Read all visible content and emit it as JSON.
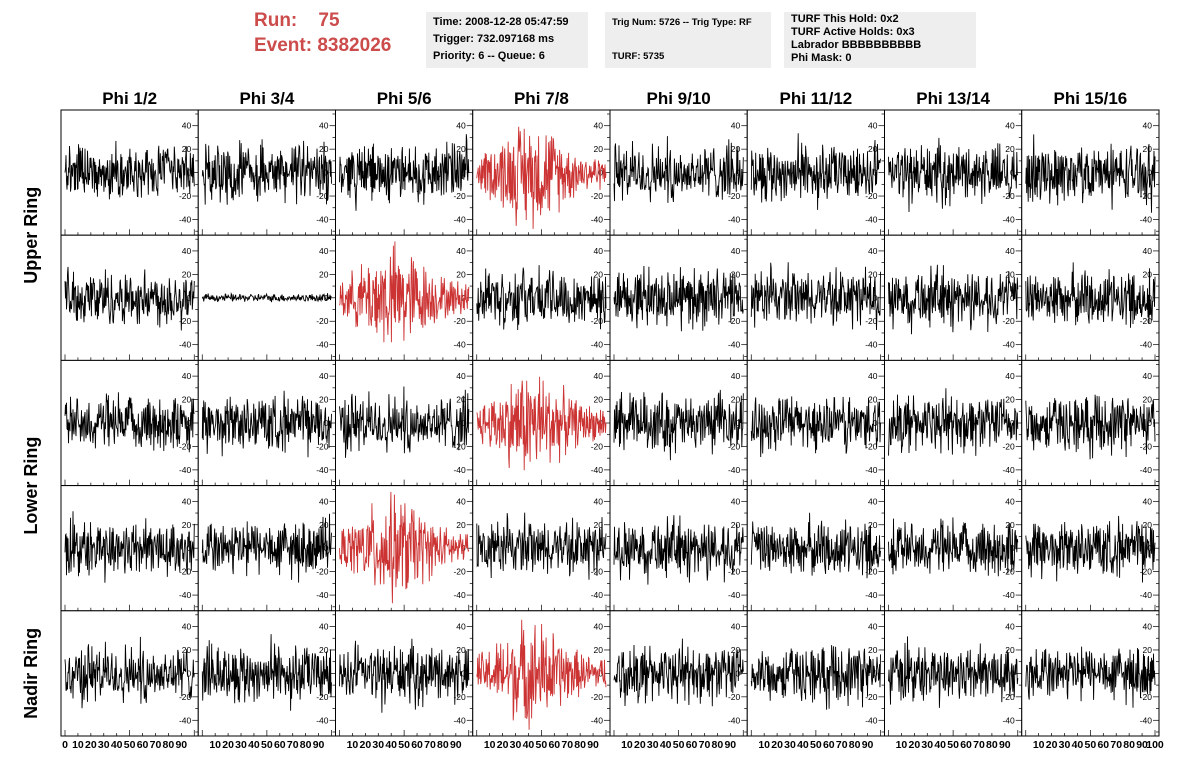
{
  "header": {
    "run_label": "Run:",
    "run_value": "75",
    "event_label": "Event:",
    "event_value": "8382026",
    "accent_color": "#cc4b4b"
  },
  "info_box_1": {
    "time": "Time: 2008-12-28 05:47:59",
    "trigger": "Trigger: 732.097168 ms",
    "priority": "Priority: 6 -- Queue: 6"
  },
  "info_box_2": {
    "trig": "Trig Num: 5726 -- Trig Type: RF",
    "turf": "TURF: 5735"
  },
  "info_box_3": {
    "hold": "TURF This Hold: 0x2",
    "active": "TURF Active Holds: 0x3",
    "labrador": "Labrador BBBBBBBBBB",
    "phimask": "Phi Mask: 0"
  },
  "chart_data": {
    "type": "line",
    "columns": [
      "Phi 1/2",
      "Phi 3/4",
      "Phi 5/6",
      "Phi 7/8",
      "Phi 9/10",
      "Phi 11/12",
      "Phi 13/14",
      "Phi 15/16"
    ],
    "ring_labels": [
      {
        "label": "Upper Ring",
        "rows": [
          0,
          1
        ]
      },
      {
        "label": "Lower Ring",
        "rows": [
          2,
          3
        ]
      },
      {
        "label": "Nadir Ring",
        "rows": [
          4
        ]
      }
    ],
    "rows": 5,
    "xlim": [
      0,
      100
    ],
    "ylim": [
      -50,
      50
    ],
    "y_ticks": [
      "40",
      "20",
      "0",
      "-20",
      "-40"
    ],
    "x_ticks": [
      "0",
      "10",
      "20",
      "30",
      "40",
      "50",
      "60",
      "70",
      "80",
      "90",
      "100"
    ],
    "trace_color": "#000000",
    "highlight_color": "#cc3333",
    "highlighted_cells": [
      [
        0,
        3
      ],
      [
        1,
        2
      ],
      [
        2,
        3
      ],
      [
        3,
        2
      ],
      [
        4,
        3
      ]
    ],
    "quiet_cells": [
      [
        1,
        1
      ]
    ],
    "trace_amplitude_approx": 45,
    "samples_per_trace": 260
  }
}
